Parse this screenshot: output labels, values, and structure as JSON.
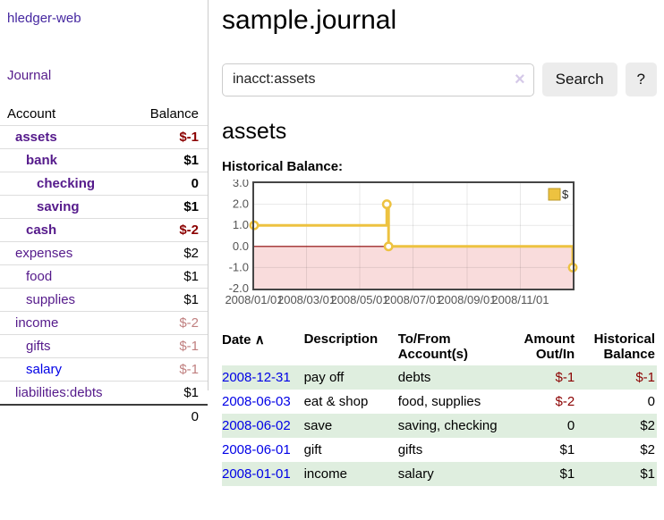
{
  "colors": {
    "accent_purple": "#551a8b",
    "brand_purple": "#4527a0",
    "link_blue": "#0000e6",
    "negative_strong": "#8b0000",
    "negative_muted": "#c08080",
    "row_green": "#dfeedf",
    "series_yellow": "#edc240",
    "negative_region_pink": "#f9dcdc",
    "zero_line_red": "#8b0000"
  },
  "sidebar": {
    "brand": "hledger-web",
    "journal_link": "Journal",
    "accounts": {
      "headers": {
        "account": "Account",
        "balance": "Balance"
      },
      "rows": [
        {
          "name": "assets",
          "balance": "$-1"
        },
        {
          "name": "bank",
          "balance": "$1"
        },
        {
          "name": "checking",
          "balance": "0"
        },
        {
          "name": "saving",
          "balance": "$1"
        },
        {
          "name": "cash",
          "balance": "$-2"
        },
        {
          "name": "expenses",
          "balance": "$2"
        },
        {
          "name": "food",
          "balance": "$1"
        },
        {
          "name": "supplies",
          "balance": "$1"
        },
        {
          "name": "income",
          "balance": "$-2"
        },
        {
          "name": "gifts",
          "balance": "$-1"
        },
        {
          "name": "salary",
          "balance": "$-1"
        },
        {
          "name": "liabilities:debts",
          "balance": "$1"
        }
      ],
      "total": "0"
    }
  },
  "header": {
    "title": "sample.journal"
  },
  "search": {
    "value": "inacct:assets",
    "clear_icon": "×",
    "search_label": "Search",
    "help_label": "?"
  },
  "register": {
    "heading": "assets",
    "chart_label": "Historical Balance:"
  },
  "chart_data": {
    "type": "line",
    "title": "Historical Balance",
    "ylim": [
      -2,
      3
    ],
    "y_ticks": [
      {
        "label": "3.0",
        "value": 3
      },
      {
        "label": "2.0",
        "value": 2
      },
      {
        "label": "1.0",
        "value": 1
      },
      {
        "label": "0.0",
        "value": 0
      },
      {
        "label": "-1.0",
        "value": -1
      },
      {
        "label": "-2.0",
        "value": -2
      }
    ],
    "x_ticks": [
      {
        "label": "2008/01/01",
        "x": 0.0
      },
      {
        "label": "2008/03/01",
        "x": 0.1644
      },
      {
        "label": "2008/05/01",
        "x": 0.3315
      },
      {
        "label": "2008/07/01",
        "x": 0.4986
      },
      {
        "label": "2008/09/01",
        "x": 0.6685
      },
      {
        "label": "2008/11/01",
        "x": 0.8356
      }
    ],
    "series": [
      {
        "name": "$",
        "color": "#edc240",
        "step": true,
        "points": [
          {
            "date": "2008-01-01",
            "x": 0.0,
            "y": 1
          },
          {
            "date": "2008-06-01",
            "x": 0.4164,
            "y": 2
          },
          {
            "date": "2008-06-03",
            "x": 0.4219,
            "y": 0
          },
          {
            "date": "2008-12-31",
            "x": 1.0,
            "y": -1
          }
        ]
      }
    ],
    "legend": {
      "label": "$",
      "position": "top-right"
    },
    "grid": true,
    "negative_region_color": "#f9dcdc",
    "zero_line_color": "#8b0000"
  },
  "transactions": {
    "headers": {
      "date": "Date",
      "sort_icon": "∧",
      "description": "Description",
      "tofrom": "To/From Account(s)",
      "amount": "Amount Out/In",
      "historical": "Historical Balance"
    },
    "rows": [
      {
        "date": "2008-12-31",
        "description": "pay off",
        "tofrom": "debts",
        "amount": "$-1",
        "historical": "$-1"
      },
      {
        "date": "2008-06-03",
        "description": "eat & shop",
        "tofrom": "food, supplies",
        "amount": "$-2",
        "historical": "0"
      },
      {
        "date": "2008-06-02",
        "description": "save",
        "tofrom": "saving, checking",
        "amount": "0",
        "historical": "$2"
      },
      {
        "date": "2008-06-01",
        "description": "gift",
        "tofrom": "gifts",
        "amount": "$1",
        "historical": "$2"
      },
      {
        "date": "2008-01-01",
        "description": "income",
        "tofrom": "salary",
        "amount": "$1",
        "historical": "$1"
      }
    ]
  }
}
